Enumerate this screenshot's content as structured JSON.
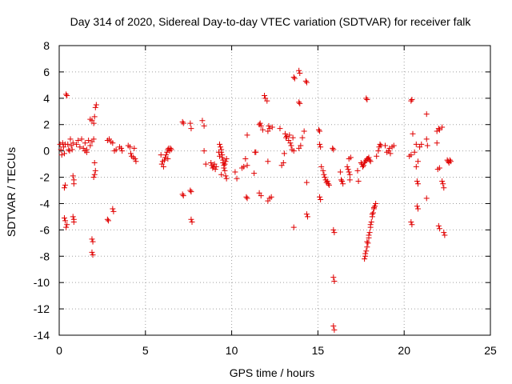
{
  "chart_data": {
    "type": "scatter",
    "title": "Day 314 of 2020, Sidereal Day-to-day VTEC variation (SDTVAR) for receiver falk",
    "xlabel": "GPS time / hours",
    "ylabel": "SDTVAR / TECUs",
    "xlim": [
      0,
      25
    ],
    "ylim": [
      -14,
      8
    ],
    "xticks": [
      0,
      5,
      10,
      15,
      20,
      25
    ],
    "yticks": [
      -14,
      -12,
      -10,
      -8,
      -6,
      -4,
      -2,
      0,
      2,
      4,
      6,
      8
    ],
    "x_tick_labels": [
      "0",
      "5",
      "10",
      "15",
      "20",
      "25"
    ],
    "y_tick_labels": [
      "-14",
      "-12",
      "-10",
      "-8",
      "-6",
      "-4",
      "-2",
      "0",
      "2",
      "4",
      "6",
      "8"
    ],
    "grid": true,
    "marker": "plus",
    "color": "#e00000",
    "series": [
      {
        "name": "SDTVAR",
        "points": [
          [
            0.05,
            0.5
          ],
          [
            0.1,
            0.1
          ],
          [
            0.15,
            -0.3
          ],
          [
            0.2,
            0.6
          ],
          [
            0.25,
            0.3
          ],
          [
            0.3,
            -0.2
          ],
          [
            0.35,
            0.5
          ],
          [
            0.4,
            4.3
          ],
          [
            0.45,
            4.2
          ],
          [
            0.3,
            -2.8
          ],
          [
            0.35,
            -2.6
          ],
          [
            0.3,
            -5.1
          ],
          [
            0.35,
            -5.3
          ],
          [
            0.4,
            -5.8
          ],
          [
            0.45,
            -5.6
          ],
          [
            0.5,
            0.5
          ],
          [
            0.55,
            0.1
          ],
          [
            0.6,
            0.0
          ],
          [
            0.65,
            0.9
          ],
          [
            0.7,
            0.4
          ],
          [
            0.75,
            0.1
          ],
          [
            0.8,
            0.6
          ],
          [
            0.8,
            -1.9
          ],
          [
            0.85,
            -2.2
          ],
          [
            0.85,
            -2.5
          ],
          [
            0.8,
            -5.0
          ],
          [
            0.85,
            -5.2
          ],
          [
            0.85,
            -5.4
          ],
          [
            1.0,
            0.5
          ],
          [
            1.1,
            0.8
          ],
          [
            1.2,
            0.3
          ],
          [
            1.3,
            0.9
          ],
          [
            1.4,
            0.2
          ],
          [
            1.5,
            0.6
          ],
          [
            1.6,
            0.1
          ],
          [
            1.7,
            0.8
          ],
          [
            1.8,
            0.4
          ],
          [
            1.9,
            0.7
          ],
          [
            2.0,
            0.9
          ],
          [
            1.5,
            0.0
          ],
          [
            1.6,
            -0.1
          ],
          [
            1.8,
            2.4
          ],
          [
            1.9,
            2.3
          ],
          [
            2.0,
            2.1
          ],
          [
            2.05,
            2.6
          ],
          [
            2.1,
            3.3
          ],
          [
            2.15,
            3.5
          ],
          [
            2.0,
            -2.0
          ],
          [
            2.05,
            -1.8
          ],
          [
            2.1,
            -1.5
          ],
          [
            2.05,
            -0.9
          ],
          [
            1.9,
            -6.7
          ],
          [
            1.95,
            -6.9
          ],
          [
            1.9,
            -7.7
          ],
          [
            1.95,
            -7.9
          ],
          [
            2.8,
            0.8
          ],
          [
            2.9,
            0.9
          ],
          [
            3.0,
            0.7
          ],
          [
            3.1,
            0.6
          ],
          [
            3.2,
            0.0
          ],
          [
            3.3,
            0.1
          ],
          [
            3.5,
            0.3
          ],
          [
            3.6,
            0.2
          ],
          [
            3.65,
            0.0
          ],
          [
            2.8,
            -5.2
          ],
          [
            2.85,
            -5.3
          ],
          [
            3.1,
            -4.4
          ],
          [
            3.15,
            -4.6
          ],
          [
            4.0,
            0.4
          ],
          [
            4.1,
            0.3
          ],
          [
            4.15,
            -0.2
          ],
          [
            4.2,
            -0.4
          ],
          [
            4.3,
            -0.5
          ],
          [
            4.35,
            0.2
          ],
          [
            4.4,
            -0.6
          ],
          [
            4.45,
            -0.8
          ],
          [
            5.9,
            -0.3
          ],
          [
            5.95,
            -1.0
          ],
          [
            6.0,
            -0.8
          ],
          [
            6.05,
            -1.2
          ],
          [
            6.1,
            -0.7
          ],
          [
            6.15,
            -0.5
          ],
          [
            6.2,
            -0.3
          ],
          [
            6.25,
            -0.1
          ],
          [
            6.3,
            0.1
          ],
          [
            6.35,
            0.2
          ],
          [
            6.4,
            0.0
          ],
          [
            6.45,
            0.2
          ],
          [
            6.5,
            0.1
          ],
          [
            6.3,
            -0.6
          ],
          [
            7.15,
            2.2
          ],
          [
            7.2,
            2.1
          ],
          [
            7.6,
            2.1
          ],
          [
            7.65,
            1.7
          ],
          [
            7.15,
            -3.3
          ],
          [
            7.2,
            -3.4
          ],
          [
            7.6,
            -3.0
          ],
          [
            7.65,
            -3.1
          ],
          [
            7.65,
            -5.2
          ],
          [
            7.7,
            -5.4
          ],
          [
            8.3,
            2.3
          ],
          [
            8.4,
            1.9
          ],
          [
            8.4,
            0.0
          ],
          [
            8.5,
            -1.0
          ],
          [
            8.8,
            -0.9
          ],
          [
            8.85,
            -1.1
          ],
          [
            8.9,
            -1.3
          ],
          [
            8.95,
            -1.2
          ],
          [
            9.0,
            -1.0
          ],
          [
            9.05,
            -1.4
          ],
          [
            9.1,
            -1.2
          ],
          [
            9.3,
            0.5
          ],
          [
            9.35,
            0.3
          ],
          [
            9.4,
            0.1
          ],
          [
            9.4,
            -0.1
          ],
          [
            9.45,
            -0.3
          ],
          [
            9.45,
            -0.5
          ],
          [
            9.5,
            -0.7
          ],
          [
            9.5,
            -0.9
          ],
          [
            9.55,
            -1.1
          ],
          [
            9.55,
            -1.3
          ],
          [
            9.6,
            -1.5
          ],
          [
            9.6,
            -1.0
          ],
          [
            9.65,
            -0.8
          ],
          [
            9.65,
            -1.9
          ],
          [
            9.7,
            -2.1
          ],
          [
            9.7,
            -0.6
          ],
          [
            9.25,
            -0.1
          ],
          [
            9.3,
            -0.4
          ],
          [
            9.4,
            -1.8
          ],
          [
            10.2,
            -1.6
          ],
          [
            10.3,
            -2.1
          ],
          [
            10.6,
            -1.3
          ],
          [
            10.7,
            -1.2
          ],
          [
            10.8,
            -0.6
          ],
          [
            10.9,
            -1.1
          ],
          [
            10.9,
            1.2
          ],
          [
            10.85,
            -3.5
          ],
          [
            10.9,
            -3.6
          ],
          [
            11.3,
            -1.7
          ],
          [
            11.35,
            -0.1
          ],
          [
            11.4,
            -0.1
          ],
          [
            11.6,
            2.0
          ],
          [
            11.65,
            2.1
          ],
          [
            11.7,
            1.9
          ],
          [
            11.6,
            -3.2
          ],
          [
            11.7,
            -3.4
          ],
          [
            11.8,
            1.6
          ],
          [
            11.9,
            4.2
          ],
          [
            11.95,
            4.0
          ],
          [
            12.05,
            3.8
          ],
          [
            12.1,
            1.5
          ],
          [
            12.15,
            1.9
          ],
          [
            12.2,
            1.7
          ],
          [
            12.1,
            -0.8
          ],
          [
            12.1,
            -3.8
          ],
          [
            12.2,
            -3.6
          ],
          [
            12.3,
            -3.5
          ],
          [
            12.35,
            1.8
          ],
          [
            12.8,
            1.7
          ],
          [
            12.9,
            -1.1
          ],
          [
            13.0,
            -0.9
          ],
          [
            13.05,
            -0.2
          ],
          [
            13.1,
            1.3
          ],
          [
            13.15,
            1.0
          ],
          [
            13.2,
            1.1
          ],
          [
            13.3,
            0.8
          ],
          [
            13.35,
            1.2
          ],
          [
            13.4,
            0.6
          ],
          [
            13.45,
            0.4
          ],
          [
            13.5,
            0.1
          ],
          [
            13.55,
            1.0
          ],
          [
            13.6,
            0.0
          ],
          [
            13.6,
            5.6
          ],
          [
            13.65,
            5.5
          ],
          [
            13.9,
            6.1
          ],
          [
            13.95,
            5.9
          ],
          [
            13.9,
            3.7
          ],
          [
            13.95,
            3.6
          ],
          [
            13.9,
            0.2
          ],
          [
            14.0,
            0.4
          ],
          [
            14.1,
            1.0
          ],
          [
            14.2,
            1.5
          ],
          [
            14.3,
            5.3
          ],
          [
            14.35,
            5.2
          ],
          [
            13.6,
            -5.8
          ],
          [
            14.35,
            -2.4
          ],
          [
            14.35,
            -4.8
          ],
          [
            14.4,
            -5.0
          ],
          [
            15.05,
            1.6
          ],
          [
            15.1,
            1.5
          ],
          [
            15.1,
            0.5
          ],
          [
            15.15,
            0.3
          ],
          [
            15.2,
            -1.2
          ],
          [
            15.1,
            -3.5
          ],
          [
            15.15,
            -3.7
          ],
          [
            15.3,
            -1.5
          ],
          [
            15.35,
            -1.8
          ],
          [
            15.4,
            -2.0
          ],
          [
            15.45,
            -2.2
          ],
          [
            15.5,
            -2.4
          ],
          [
            15.55,
            -2.3
          ],
          [
            15.6,
            -2.5
          ],
          [
            15.65,
            -2.6
          ],
          [
            15.85,
            0.2
          ],
          [
            15.9,
            0.1
          ],
          [
            15.9,
            -6.0
          ],
          [
            15.95,
            -6.2
          ],
          [
            15.9,
            -9.6
          ],
          [
            15.95,
            -9.9
          ],
          [
            15.9,
            -13.3
          ],
          [
            15.95,
            -13.6
          ],
          [
            16.3,
            -1.6
          ],
          [
            16.35,
            -2.2
          ],
          [
            16.4,
            -2.3
          ],
          [
            16.45,
            -2.5
          ],
          [
            16.7,
            -1.2
          ],
          [
            16.75,
            -1.4
          ],
          [
            16.8,
            -1.6
          ],
          [
            16.85,
            -1.8
          ],
          [
            16.85,
            -2.2
          ],
          [
            16.8,
            -0.6
          ],
          [
            16.9,
            -0.5
          ],
          [
            17.3,
            -1.5
          ],
          [
            17.35,
            -2.3
          ],
          [
            17.5,
            -0.9
          ],
          [
            17.55,
            -1.0
          ],
          [
            17.6,
            -1.2
          ],
          [
            17.65,
            -1.1
          ],
          [
            17.7,
            -0.9
          ],
          [
            17.75,
            -0.8
          ],
          [
            17.8,
            -0.7
          ],
          [
            17.85,
            -0.6
          ],
          [
            17.9,
            -0.6
          ],
          [
            17.95,
            -0.5
          ],
          [
            18.0,
            -0.7
          ],
          [
            18.05,
            -0.8
          ],
          [
            17.8,
            4.0
          ],
          [
            17.85,
            3.9
          ],
          [
            17.7,
            -8.2
          ],
          [
            17.75,
            -8.0
          ],
          [
            17.8,
            -7.6
          ],
          [
            17.85,
            -7.3
          ],
          [
            17.9,
            -7.0
          ],
          [
            17.95,
            -6.6
          ],
          [
            18.0,
            -6.2
          ],
          [
            18.05,
            -5.8
          ],
          [
            18.1,
            -5.4
          ],
          [
            18.15,
            -5.0
          ],
          [
            18.2,
            -4.7
          ],
          [
            18.25,
            -4.4
          ],
          [
            18.3,
            -4.2
          ],
          [
            18.35,
            -4.0
          ],
          [
            17.75,
            -7.8
          ],
          [
            17.85,
            -6.9
          ],
          [
            17.95,
            -6.4
          ],
          [
            18.05,
            -5.6
          ],
          [
            18.15,
            -4.8
          ],
          [
            18.25,
            -4.3
          ],
          [
            18.4,
            -0.4
          ],
          [
            18.5,
            0.0
          ],
          [
            18.55,
            0.3
          ],
          [
            18.6,
            0.5
          ],
          [
            18.65,
            0.4
          ],
          [
            18.9,
            0.4
          ],
          [
            19.0,
            -0.1
          ],
          [
            19.1,
            0.0
          ],
          [
            19.15,
            0.2
          ],
          [
            19.2,
            -0.2
          ],
          [
            19.3,
            0.3
          ],
          [
            19.4,
            0.4
          ],
          [
            20.3,
            -0.4
          ],
          [
            20.4,
            -0.3
          ],
          [
            20.5,
            1.3
          ],
          [
            20.6,
            -0.1
          ],
          [
            20.7,
            0.5
          ],
          [
            20.8,
            -0.8
          ],
          [
            20.9,
            0.3
          ],
          [
            21.0,
            0.5
          ],
          [
            20.4,
            3.8
          ],
          [
            20.45,
            3.9
          ],
          [
            20.7,
            -1.2
          ],
          [
            20.75,
            -2.3
          ],
          [
            20.8,
            -2.5
          ],
          [
            20.75,
            -4.2
          ],
          [
            20.8,
            -4.4
          ],
          [
            20.4,
            -5.4
          ],
          [
            20.45,
            -5.6
          ],
          [
            21.3,
            2.8
          ],
          [
            21.3,
            0.9
          ],
          [
            21.35,
            0.4
          ],
          [
            21.3,
            -3.6
          ],
          [
            21.9,
            1.5
          ],
          [
            22.0,
            1.7
          ],
          [
            22.05,
            1.6
          ],
          [
            22.2,
            1.8
          ],
          [
            21.9,
            0.6
          ],
          [
            21.95,
            -1.4
          ],
          [
            22.05,
            -1.3
          ],
          [
            22.2,
            -2.3
          ],
          [
            22.25,
            -2.5
          ],
          [
            22.3,
            -2.8
          ],
          [
            22.0,
            -5.7
          ],
          [
            22.05,
            -5.9
          ],
          [
            22.3,
            -6.2
          ],
          [
            22.35,
            -6.4
          ],
          [
            22.5,
            -0.7
          ],
          [
            22.55,
            -0.8
          ],
          [
            22.6,
            -0.9
          ],
          [
            22.65,
            -0.7
          ],
          [
            22.7,
            -0.8
          ]
        ]
      }
    ]
  }
}
